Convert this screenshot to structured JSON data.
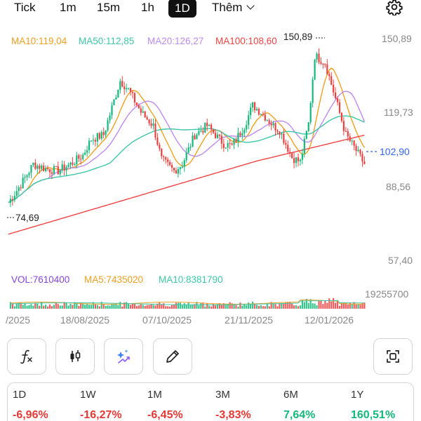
{
  "timeframes": [
    {
      "label": "Tick",
      "active": false
    },
    {
      "label": "1m",
      "active": false
    },
    {
      "label": "15m",
      "active": false
    },
    {
      "label": "1h",
      "active": false
    },
    {
      "label": "1D",
      "active": true
    }
  ],
  "more_label": "Thêm",
  "icons": {
    "settings": "gear-icon",
    "formula": "fx-icon",
    "candle": "candlestick-icon",
    "ai": "sparkle-icon",
    "draw": "pencil-icon",
    "fullscreen": "frame-icon"
  },
  "ma_legend": [
    {
      "text": "MA10:119,04",
      "color": "#f0a020"
    },
    {
      "text": "MA50:112,85",
      "color": "#3ec6a8"
    },
    {
      "text": "MA20:126,27",
      "color": "#c08af0"
    },
    {
      "text": "MA100:108,60",
      "color": "#ee4444"
    }
  ],
  "vol_legend": [
    {
      "text": "VOL:7610400",
      "color": "#8844dd"
    },
    {
      "text": "MA5:7435020",
      "color": "#f0a020"
    },
    {
      "text": "MA10:8381790",
      "color": "#3ec6a8"
    }
  ],
  "price_axis": [
    "150,89",
    "119,73",
    "88,56",
    "57,40"
  ],
  "volume_axis": "19255700",
  "high_marker": "150,89",
  "low_marker": "74,69",
  "current_price": "102,90",
  "date_axis": [
    "/2025",
    "18/08/2025",
    "07/10/2025",
    "21/11/2025",
    "12/01/2026"
  ],
  "colors": {
    "up": "#14b87a",
    "down": "#ef4040",
    "ma10": "#f0a020",
    "ma20": "#c08af0",
    "ma50": "#3ec6a8",
    "ma100": "#ee4444",
    "current": "#3366ee"
  },
  "performance": [
    {
      "label": "1D",
      "value": "-6,96%",
      "color": "#e53935"
    },
    {
      "label": "1W",
      "value": "-16,27%",
      "color": "#e53935"
    },
    {
      "label": "1M",
      "value": "-6,45%",
      "color": "#e53935"
    },
    {
      "label": "3M",
      "value": "-3,83%",
      "color": "#e53935"
    },
    {
      "label": "6M",
      "value": "7,64%",
      "color": "#14b87a"
    },
    {
      "label": "1Y",
      "value": "160,51%",
      "color": "#14b87a"
    }
  ]
}
